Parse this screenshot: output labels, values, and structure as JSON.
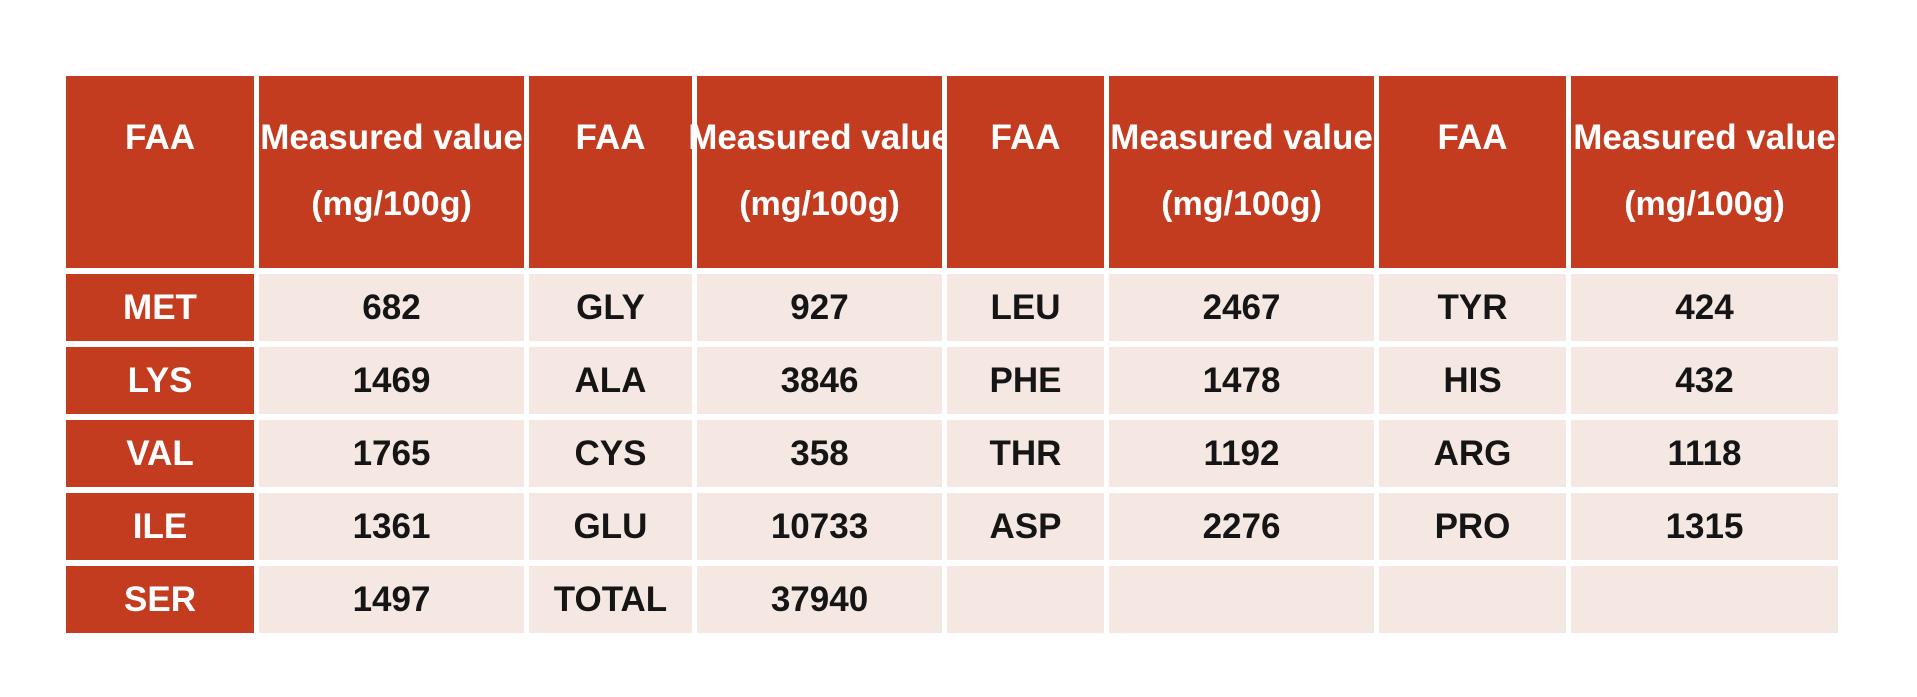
{
  "colors": {
    "accent_red": "#C43C20",
    "band_pink": "#F5E7E2",
    "header_text": "#FFFFFF",
    "body_text": "#151515",
    "page_background": "#FFFFFF"
  },
  "table": {
    "header": {
      "faa_label": "FAA",
      "value_label_line1": "Measured value",
      "value_label_line2": "(mg/100g)"
    },
    "header_repeat": 4,
    "rows": [
      [
        "MET",
        "682",
        "GLY",
        "927",
        "LEU",
        "2467",
        "TYR",
        "424"
      ],
      [
        "LYS",
        "1469",
        "ALA",
        "3846",
        "PHE",
        "1478",
        "HIS",
        "432"
      ],
      [
        "VAL",
        "1765",
        "CYS",
        "358",
        "THR",
        "1192",
        "ARG",
        "1118"
      ],
      [
        "ILE",
        "1361",
        "GLU",
        "10733",
        "ASP",
        "2276",
        "PRO",
        "1315"
      ],
      [
        "SER",
        "1497",
        "TOTAL",
        "37940",
        "",
        "",
        "",
        ""
      ]
    ]
  },
  "chart_data": {
    "type": "table",
    "title": "",
    "columns": [
      "FAA",
      "Measured value (mg/100g)",
      "FAA",
      "Measured value (mg/100g)",
      "FAA",
      "Measured value (mg/100g)",
      "FAA",
      "Measured value (mg/100g)"
    ],
    "rows": [
      [
        "MET",
        682,
        "GLY",
        927,
        "LEU",
        2467,
        "TYR",
        424
      ],
      [
        "LYS",
        1469,
        "ALA",
        3846,
        "PHE",
        1478,
        "HIS",
        432
      ],
      [
        "VAL",
        1765,
        "CYS",
        358,
        "THR",
        1192,
        "ARG",
        1118
      ],
      [
        "ILE",
        1361,
        "GLU",
        10733,
        "ASP",
        2276,
        "PRO",
        1315
      ],
      [
        "SER",
        1497,
        "TOTAL",
        37940,
        null,
        null,
        null,
        null
      ]
    ],
    "measurements": {
      "MET": 682,
      "LYS": 1469,
      "VAL": 1765,
      "ILE": 1361,
      "SER": 1497,
      "GLY": 927,
      "ALA": 3846,
      "CYS": 358,
      "GLU": 10733,
      "LEU": 2467,
      "PHE": 1478,
      "THR": 1192,
      "ASP": 2276,
      "TYR": 424,
      "HIS": 432,
      "ARG": 1118,
      "PRO": 1315,
      "TOTAL": 37940
    },
    "unit": "mg/100g",
    "layout": {
      "header_bg": "#C43C20",
      "first_column_bg": "#C43C20",
      "data_cell_bg": "#F5E7E2",
      "grid_gap_color": "#FFFFFF"
    }
  }
}
